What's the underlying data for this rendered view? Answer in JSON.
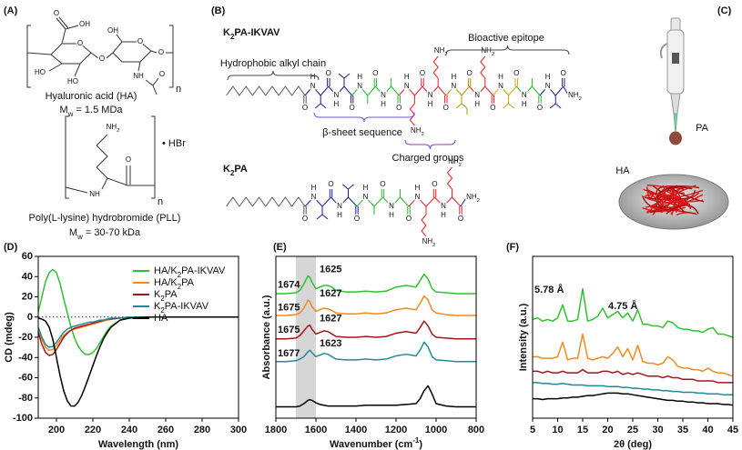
{
  "panel_a": {
    "label": "(A)",
    "ha": {
      "atoms": [
        "O",
        "OH",
        "HO",
        "HO",
        "O",
        "OH",
        "O",
        "NH",
        "O",
        "O",
        "O"
      ],
      "n": "n",
      "name": "Hyaluronic acid (HA)",
      "mw": "Mw = 1.5 MDa"
    },
    "pll": {
      "atoms": [
        "NH2",
        "O",
        "NH"
      ],
      "salt": "• HBr",
      "n": "n",
      "name": "Poly(L-lysine) hydrobromide (PLL)",
      "mw": "Mw = 30-70 kDa"
    }
  },
  "panel_b": {
    "label": "(B)",
    "peptide_1": "K2PA-IKVAV",
    "peptide_2": "K2PA",
    "regions": [
      "Hydrophobic alkyl chain",
      "Bioactive epitope",
      "β-sheet sequence",
      "Charged groups"
    ],
    "atoms": {
      "O": "O",
      "N": "N",
      "H": "H",
      "NH2": "NH2"
    }
  },
  "panel_c": {
    "label": "(C)",
    "pa": "PA",
    "ha": "HA"
  },
  "chart_data": [
    {
      "type": "line",
      "panel_label": "(D)",
      "xlabel": "Wavelength (nm)",
      "ylabel": "CD (mdeg)",
      "x": [
        190,
        192,
        194,
        196,
        198,
        200,
        202,
        204,
        206,
        208,
        210,
        212,
        214,
        216,
        218,
        220,
        222,
        224,
        226,
        228,
        230,
        235,
        240,
        250,
        260,
        270,
        280,
        290,
        300
      ],
      "xlim": [
        190,
        300
      ],
      "xticks": [
        200,
        220,
        240,
        260,
        280,
        300
      ],
      "ylim": [
        -100,
        60
      ],
      "yticks": [
        -100,
        -80,
        -60,
        -40,
        -20,
        0,
        20,
        40,
        60
      ],
      "reference_line": 0,
      "legend": "upper right",
      "series": [
        {
          "name": "HA/K2PA-IKVAV",
          "color": "#2ec22e",
          "values": [
            5,
            20,
            35,
            44,
            47,
            44,
            33,
            18,
            4,
            -10,
            -21,
            -29,
            -34,
            -37,
            -37,
            -35,
            -31,
            -25,
            -19,
            -13,
            -9,
            -3,
            -1,
            0,
            0,
            0,
            0,
            0,
            0
          ]
        },
        {
          "name": "HA/K2PA",
          "color": "#f5891f",
          "values": [
            -12,
            -22,
            -30,
            -33,
            -32,
            -28,
            -23,
            -18,
            -15,
            -13,
            -12,
            -11,
            -10,
            -9,
            -8,
            -7,
            -6,
            -5,
            -4,
            -3,
            -2,
            -1,
            0,
            0,
            0,
            0,
            0,
            0,
            0
          ]
        },
        {
          "name": "K2PA",
          "color": "#a3161b",
          "values": [
            -15,
            -27,
            -35,
            -38,
            -37,
            -32,
            -26,
            -20,
            -16,
            -13,
            -11,
            -10,
            -9,
            -8,
            -7,
            -6,
            -5,
            -4,
            -3,
            -2,
            -2,
            -1,
            0,
            0,
            0,
            0,
            0,
            0,
            0
          ]
        },
        {
          "name": "K2PA-IKVAV",
          "color": "#1f8b99",
          "values": [
            -10,
            -20,
            -27,
            -30,
            -29,
            -25,
            -20,
            -15,
            -12,
            -10,
            -9,
            -8,
            -7,
            -6,
            -5,
            -5,
            -4,
            -3,
            -3,
            -2,
            -1,
            -1,
            0,
            0,
            0,
            0,
            0,
            0,
            0
          ]
        },
        {
          "name": "HA",
          "color": "#000000",
          "values": [
            -1,
            -2,
            -4,
            -10,
            -22,
            -40,
            -58,
            -73,
            -83,
            -88,
            -88,
            -84,
            -77,
            -68,
            -58,
            -48,
            -38,
            -29,
            -21,
            -15,
            -10,
            -3,
            -1,
            0,
            0,
            0,
            0,
            0,
            0
          ]
        }
      ]
    },
    {
      "type": "line",
      "panel_label": "(E)",
      "xlabel": "Wavenumber (cm-1)",
      "ylabel": "Absorbance (a.u.)",
      "x": [
        1800,
        1750,
        1700,
        1680,
        1660,
        1640,
        1630,
        1620,
        1600,
        1580,
        1560,
        1540,
        1520,
        1500,
        1450,
        1400,
        1350,
        1300,
        1250,
        1200,
        1150,
        1100,
        1080,
        1060,
        1040,
        1020,
        1000,
        950,
        900,
        850,
        800
      ],
      "xlim": [
        1800,
        800
      ],
      "xticks": [
        1800,
        1600,
        1400,
        1200,
        1000,
        800
      ],
      "ylim": [
        0,
        100
      ],
      "band": [
        1700,
        1600
      ],
      "peak_labels": [
        [
          "1674",
          "1625"
        ],
        [
          "1675",
          "1627"
        ],
        [
          "1675",
          "1627"
        ],
        [
          "1677",
          "1623"
        ]
      ],
      "series": [
        {
          "color": "#2ec22e",
          "values": [
            77,
            77,
            77.5,
            79,
            83,
            88,
            87,
            84,
            80,
            81,
            82,
            82,
            81,
            79,
            78,
            78,
            78.5,
            78,
            78.5,
            81,
            82,
            81,
            85,
            89,
            86,
            80,
            78,
            77.5,
            77,
            77,
            77
          ]
        },
        {
          "color": "#f5891f",
          "values": [
            63.5,
            63.5,
            64,
            65,
            68,
            73,
            72,
            69,
            66,
            67,
            68,
            67.5,
            66.5,
            65,
            64.5,
            64.5,
            65,
            64.5,
            65,
            67,
            68,
            67,
            71,
            75.5,
            73,
            67,
            65,
            64,
            63.5,
            63.5,
            63.5
          ]
        },
        {
          "color": "#a3161b",
          "values": [
            49,
            49,
            49.5,
            51,
            54,
            57,
            57.5,
            55,
            52,
            53,
            54,
            53.5,
            52,
            50.5,
            50,
            50,
            50.5,
            50,
            50.5,
            52.5,
            53.5,
            52.5,
            56,
            60,
            57,
            52,
            50,
            49.5,
            49,
            49,
            49
          ]
        },
        {
          "color": "#1f8b99",
          "values": [
            35,
            35,
            35.5,
            36.5,
            38,
            41,
            42,
            40.5,
            38,
            39,
            40,
            39.5,
            38,
            36.5,
            36,
            36,
            36.5,
            36,
            36.5,
            38.5,
            39.5,
            38.5,
            42,
            47,
            44,
            38,
            36,
            35.5,
            35,
            35,
            35
          ]
        },
        {
          "color": "#000000",
          "values": [
            7,
            7,
            7,
            7.5,
            9,
            11,
            11.5,
            11,
            9.5,
            8.5,
            8,
            7.5,
            7.5,
            7.5,
            7.5,
            7.5,
            8,
            8,
            8,
            8,
            8.5,
            9,
            12,
            17,
            20,
            15,
            9,
            7.5,
            7,
            7,
            7
          ]
        }
      ]
    },
    {
      "type": "line",
      "panel_label": "(F)",
      "xlabel": "2θ (deg)",
      "ylabel": "Intensity (a.u.)",
      "x": [
        5,
        6,
        7,
        8,
        9,
        10,
        11,
        12,
        13,
        14,
        15,
        16,
        17,
        18,
        19,
        20,
        21,
        22,
        23,
        24,
        25,
        26,
        27,
        28,
        29,
        30,
        31,
        32,
        33,
        34,
        35,
        36,
        37,
        38,
        39,
        40,
        41,
        42,
        43,
        44,
        45
      ],
      "xlim": [
        5,
        45
      ],
      "xticks": [
        5,
        10,
        15,
        20,
        25,
        30,
        35,
        40,
        45
      ],
      "ylim": [
        0,
        100
      ],
      "annotations": [
        "5.78 Å",
        "4.75 Å"
      ],
      "series": [
        {
          "color": "#2ec22e",
          "values": [
            61,
            62,
            60,
            61,
            60,
            62,
            70,
            60,
            60,
            61,
            80,
            60,
            61,
            63,
            68,
            62,
            64,
            66,
            62,
            65,
            60,
            67,
            58,
            58,
            57,
            57,
            56,
            60,
            59,
            56,
            55,
            55,
            54,
            54,
            53,
            55,
            56,
            52,
            52,
            51,
            50
          ]
        },
        {
          "color": "#f5891f",
          "values": [
            38,
            38,
            37,
            37,
            37,
            38,
            47,
            36,
            37,
            37,
            52,
            37,
            36,
            37,
            38,
            37,
            40,
            44,
            38,
            43,
            36,
            45,
            35,
            34,
            34,
            33,
            34,
            38,
            36,
            32,
            31,
            31,
            30,
            30,
            29,
            31,
            29,
            28,
            28,
            27,
            26
          ]
        },
        {
          "color": "#a3161b",
          "values": [
            29,
            29,
            28,
            29,
            28,
            28,
            29,
            28,
            28,
            28,
            30,
            28,
            28,
            28,
            29,
            29,
            28,
            29,
            27,
            28,
            27,
            28,
            27,
            26,
            26,
            26,
            25,
            26,
            25,
            25,
            24,
            24,
            24,
            23,
            23,
            23,
            23,
            22,
            22,
            22,
            22
          ]
        },
        {
          "color": "#1f8b99",
          "values": [
            22,
            22,
            21.5,
            21.5,
            21,
            21,
            21.5,
            21,
            20.5,
            20.5,
            20.5,
            20,
            20,
            20,
            20,
            19.5,
            19.5,
            19.5,
            19,
            19,
            18.5,
            18.5,
            18,
            18,
            17.5,
            17.5,
            17,
            17,
            16.5,
            16.5,
            16,
            16,
            16,
            15.5,
            15.5,
            15,
            15,
            15,
            14.5,
            14.5,
            14.5
          ]
        },
        {
          "color": "#000000",
          "values": [
            12,
            12,
            11.5,
            12,
            12,
            12,
            12.5,
            12.5,
            13,
            13,
            13.5,
            14,
            14,
            14.5,
            15,
            15.5,
            15.5,
            15.5,
            15,
            15,
            14.5,
            14,
            13.5,
            13,
            12.5,
            12,
            11.5,
            11,
            11,
            10.5,
            10.5,
            10,
            10,
            9.5,
            9.5,
            9,
            9,
            9,
            8.5,
            8.5,
            8
          ]
        }
      ]
    }
  ]
}
